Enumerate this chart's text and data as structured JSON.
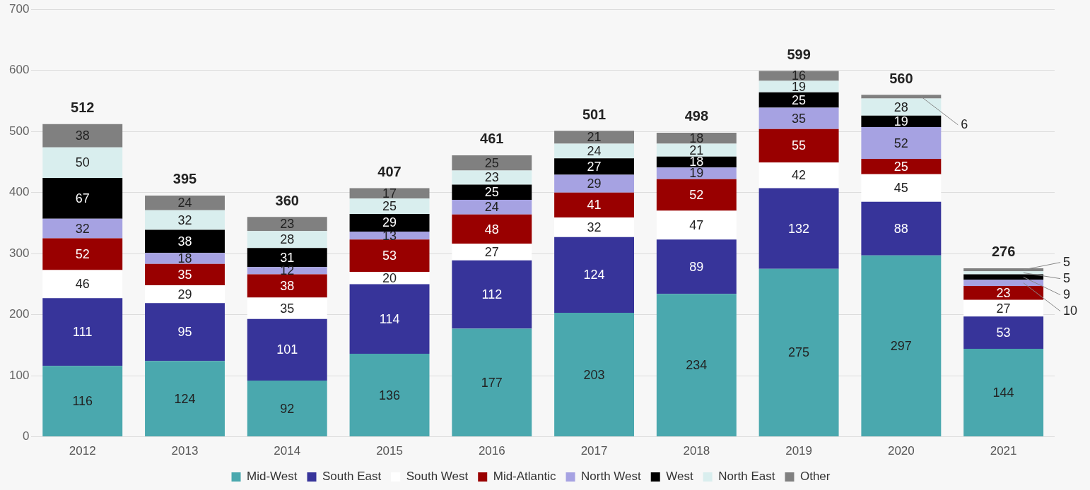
{
  "chart_data": {
    "type": "bar",
    "stacked": true,
    "categories": [
      "2012",
      "2013",
      "2014",
      "2015",
      "2016",
      "2017",
      "2018",
      "2019",
      "2020",
      "2021"
    ],
    "series": [
      {
        "name": "Mid-West",
        "color": "#4aa8ae",
        "values": [
          116,
          124,
          92,
          136,
          177,
          203,
          234,
          275,
          297,
          144
        ]
      },
      {
        "name": "South East",
        "color": "#37349a",
        "values": [
          111,
          95,
          101,
          114,
          112,
          124,
          89,
          132,
          88,
          53
        ]
      },
      {
        "name": "South West",
        "color": "#ffffff",
        "values": [
          46,
          29,
          35,
          20,
          27,
          32,
          47,
          42,
          45,
          27
        ]
      },
      {
        "name": "Mid-Atlantic",
        "color": "#990000",
        "values": [
          52,
          35,
          38,
          53,
          48,
          41,
          52,
          55,
          25,
          23
        ]
      },
      {
        "name": "North West",
        "color": "#a6a2e2",
        "values": [
          32,
          18,
          12,
          13,
          24,
          29,
          19,
          35,
          52,
          10
        ]
      },
      {
        "name": "West",
        "color": "#000000",
        "values": [
          67,
          38,
          31,
          29,
          25,
          27,
          18,
          25,
          19,
          9
        ]
      },
      {
        "name": "North East",
        "color": "#d9eeee",
        "values": [
          50,
          32,
          28,
          25,
          23,
          24,
          21,
          19,
          28,
          5
        ]
      },
      {
        "name": "Other",
        "color": "#808080",
        "values": [
          38,
          24,
          23,
          17,
          25,
          21,
          18,
          16,
          6,
          5
        ]
      }
    ],
    "totals": [
      "512",
      "395",
      "360",
      "407",
      "461",
      "501",
      "498",
      "599",
      "560",
      "276"
    ],
    "ylim": [
      0,
      700
    ],
    "yticks": [
      0,
      100,
      200,
      300,
      400,
      500,
      600,
      700
    ],
    "grid": "y",
    "legend": "bottom",
    "data_labels": true
  }
}
